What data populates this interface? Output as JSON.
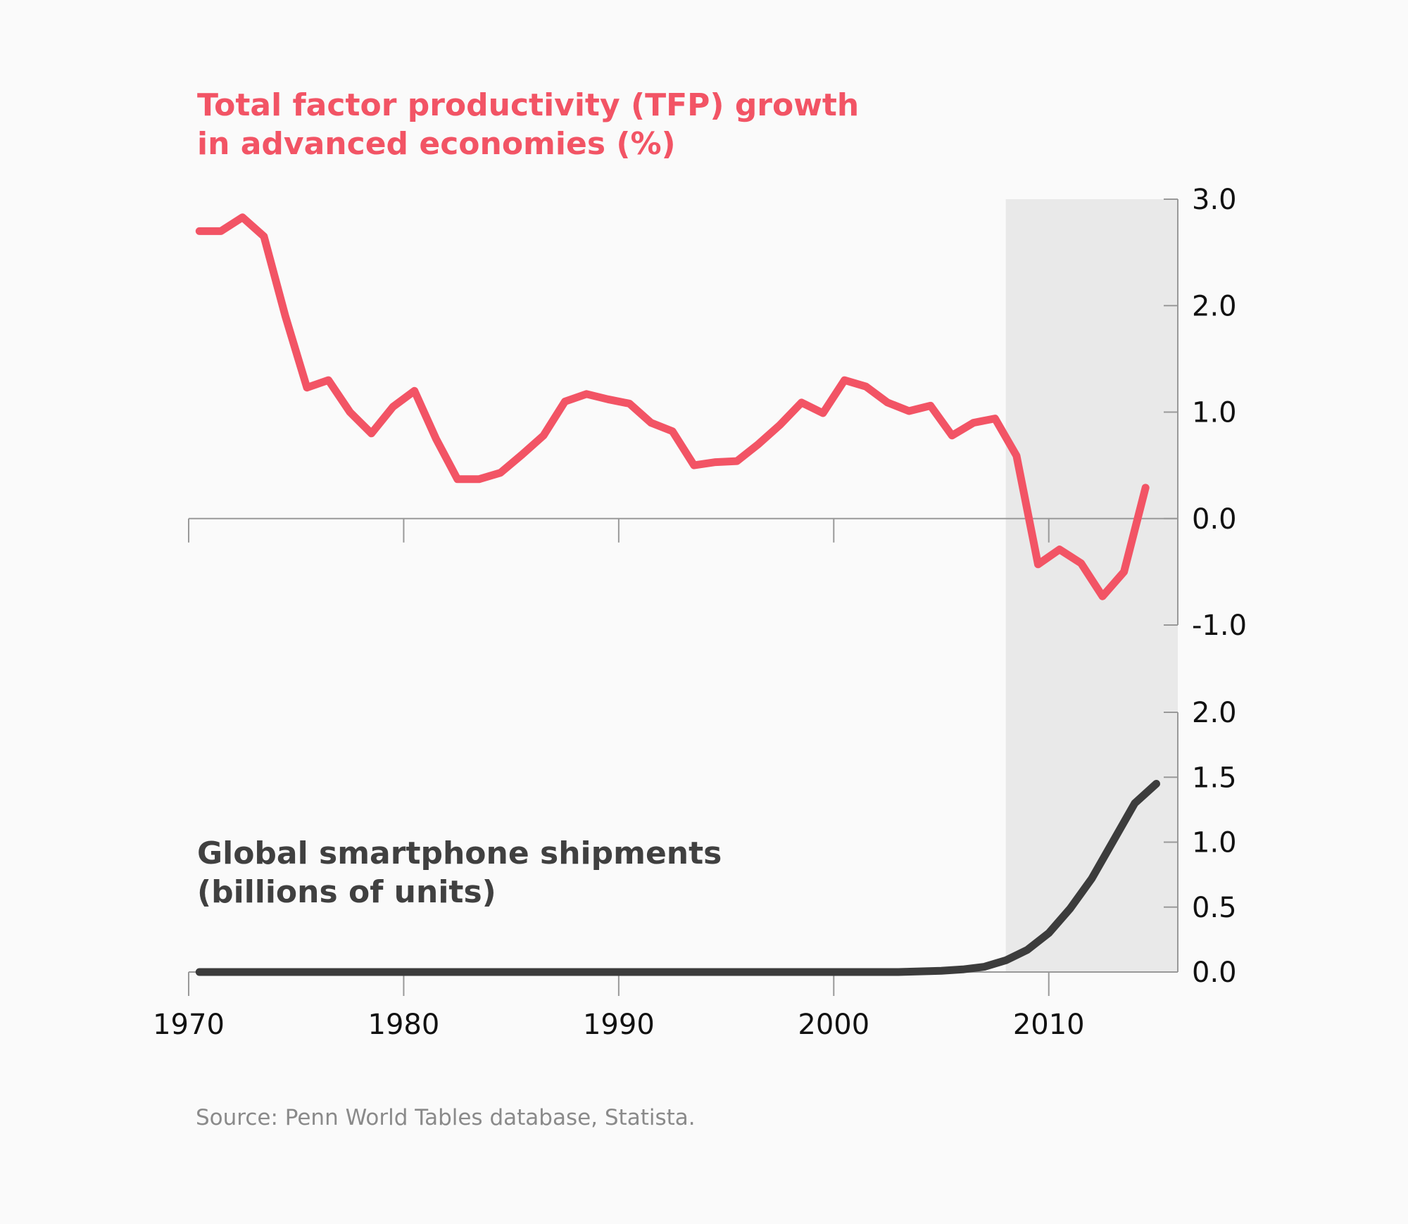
{
  "titles": {
    "tfp_line1": "Total factor productivity (TFP) growth",
    "tfp_line2": "in advanced economies (%)",
    "phone_line1": "Global smartphone shipments",
    "phone_line2": "(billions of units)"
  },
  "source": "Source: Penn World Tables database, Statista.",
  "colors": {
    "tfp": "#f25465",
    "smartphone": "#3c3c3c",
    "shade": "#e9e9e9",
    "axis": "#999999",
    "background": "#fafafa"
  },
  "chart_data": [
    {
      "type": "line",
      "title": "Total factor productivity (TFP) growth in advanced economies (%)",
      "xlim": [
        1970,
        2016
      ],
      "ylim": [
        -1.0,
        3.0
      ],
      "y_ticks": [
        "3.0",
        "2.0",
        "1.0",
        "0.0",
        "-1.0"
      ],
      "y_axis_side": "right",
      "shaded_region": {
        "x_from": 2008,
        "x_to": 2016
      },
      "series": [
        {
          "x": [
            1970.5,
            1971.5,
            1972.5,
            1973.5,
            1974.5,
            1975.5,
            1976.5,
            1977.5,
            1978.5,
            1979.5,
            1980.5,
            1981.5,
            1982.5,
            1983.5,
            1984.5,
            1985.5,
            1986.5,
            1987.5,
            1988.5,
            1989.5,
            1990.5,
            1991.5,
            1992.5,
            1993.5,
            1994.5,
            1995.5,
            1996.5,
            1997.5,
            1998.5,
            1999.5,
            2000.5,
            2001.5,
            2002.5,
            2003.5,
            2004.5,
            2005.5,
            2006.5,
            2007.5,
            2008.5,
            2009.5,
            2010.5,
            2011.5,
            2012.5,
            2013.5,
            2014.5
          ],
          "values": [
            2.7,
            2.7,
            2.83,
            2.65,
            1.9,
            1.23,
            1.3,
            1.0,
            0.8,
            1.05,
            1.2,
            0.75,
            0.37,
            0.37,
            0.43,
            0.6,
            0.78,
            1.1,
            1.17,
            1.12,
            1.08,
            0.9,
            0.82,
            0.5,
            0.53,
            0.54,
            0.7,
            0.88,
            1.09,
            0.99,
            1.3,
            1.24,
            1.09,
            1.01,
            1.06,
            0.78,
            0.9,
            0.94,
            0.59,
            -0.43,
            -0.29,
            -0.42,
            -0.73,
            -0.5,
            0.29
          ]
        }
      ]
    },
    {
      "type": "line",
      "title": "Global smartphone shipments (billions of units)",
      "xlim": [
        1970,
        2016
      ],
      "ylim": [
        0.0,
        2.0
      ],
      "x_ticks": [
        "1970",
        "1980",
        "1990",
        "2000",
        "2010"
      ],
      "y_ticks": [
        "2.0",
        "1.5",
        "1.0",
        "0.5",
        "0.0"
      ],
      "y_axis_side": "right",
      "shaded_region": {
        "x_from": 2008,
        "x_to": 2016
      },
      "series": [
        {
          "x": [
            1970.5,
            1975,
            1980,
            1985,
            1990,
            1995,
            2000,
            2003,
            2004,
            2005,
            2006,
            2007,
            2008,
            2009,
            2010,
            2011,
            2012,
            2013,
            2014,
            2015
          ],
          "values": [
            0.0,
            0.0,
            0.0,
            0.0,
            0.0,
            0.0,
            0.0,
            0.0,
            0.005,
            0.01,
            0.02,
            0.04,
            0.09,
            0.17,
            0.3,
            0.49,
            0.72,
            1.01,
            1.3,
            1.45
          ]
        }
      ]
    }
  ]
}
